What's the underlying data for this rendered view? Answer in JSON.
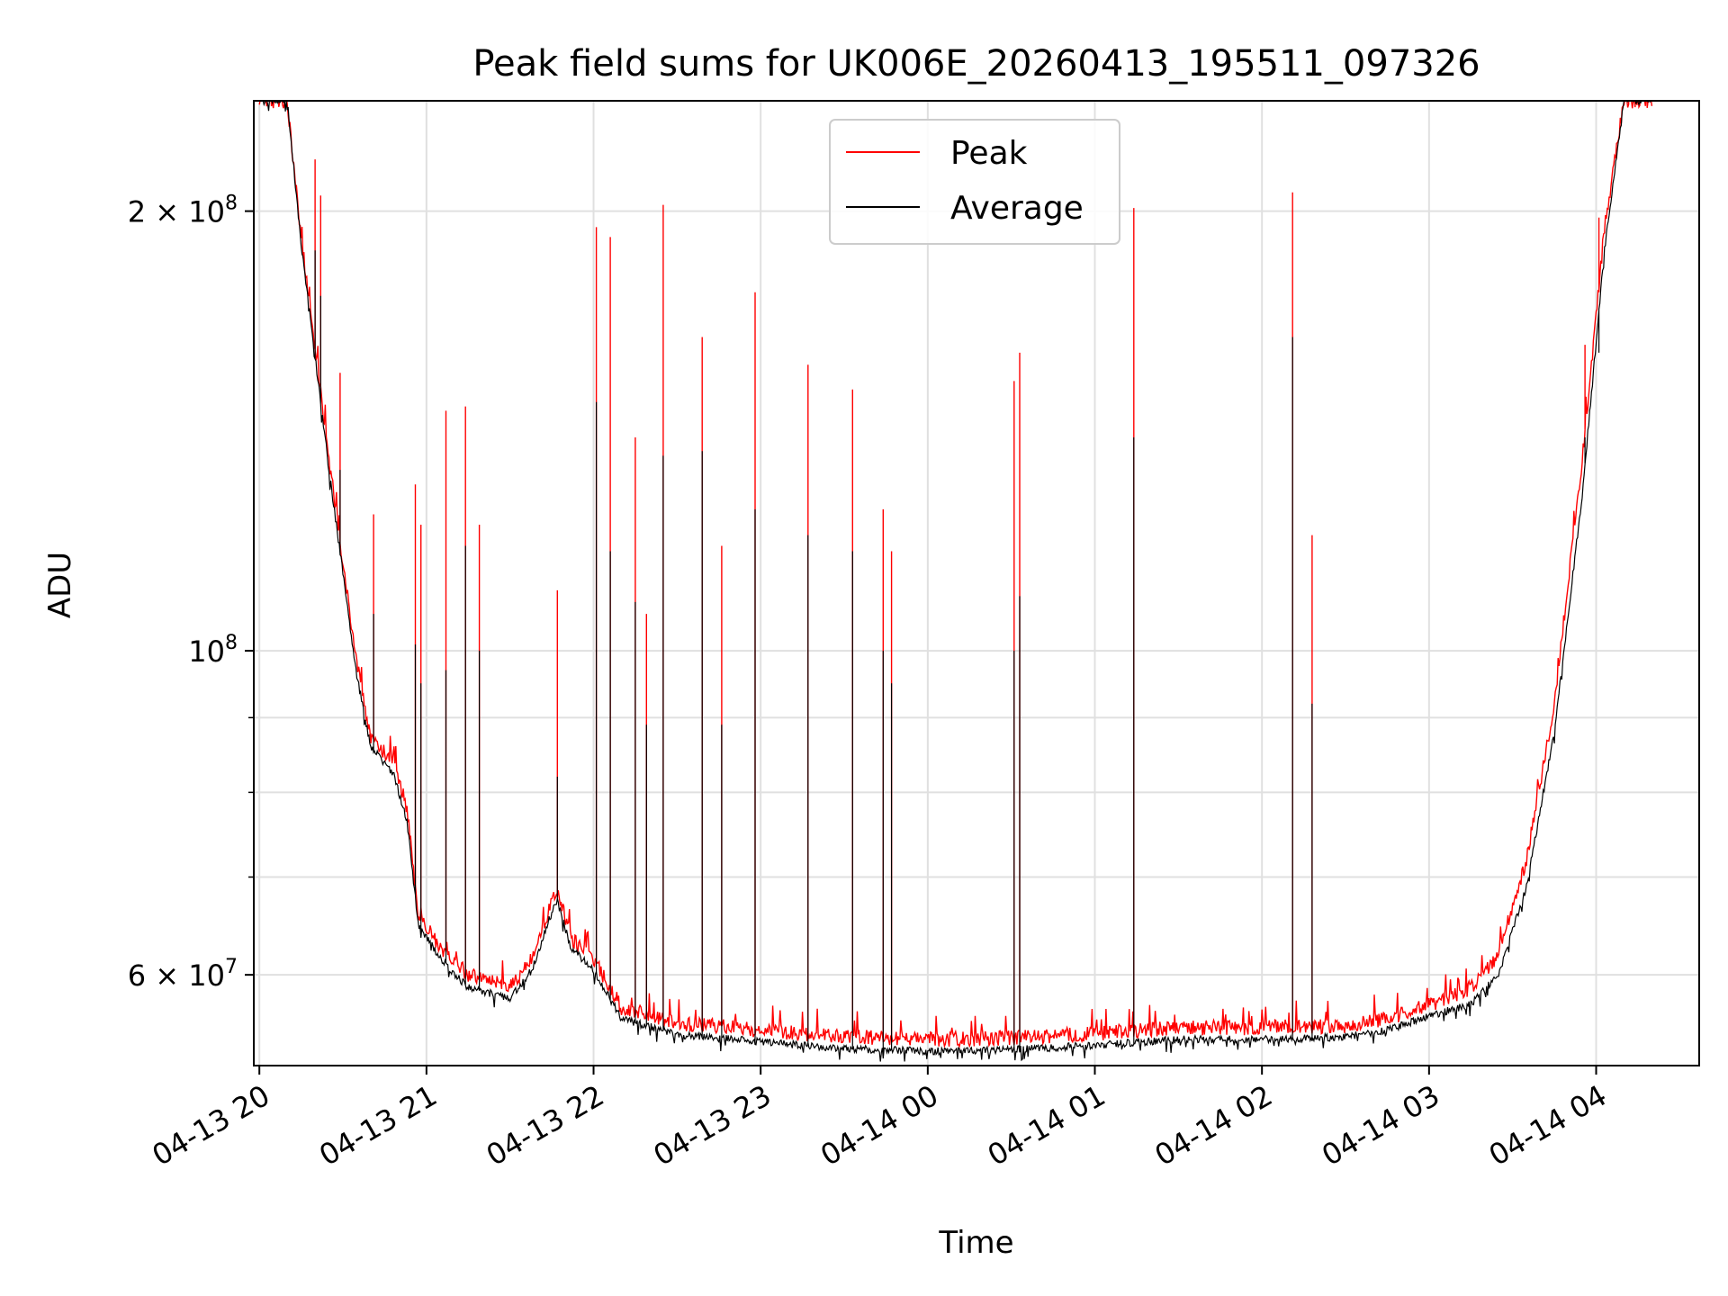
{
  "chart_data": {
    "type": "line",
    "title": "Peak field sums for UK006E_20260413_195511_097326",
    "xlabel": "Time",
    "ylabel": "ADU",
    "y_scale": "log",
    "ylim": [
      52000000,
      238000000
    ],
    "xlim": [
      "2026-04-13 19:58",
      "2026-04-14 04:37"
    ],
    "grid": true,
    "legend_position": "top-center",
    "x_ticks": [
      "04-13 20",
      "04-13 21",
      "04-13 22",
      "04-13 23",
      "04-14 00",
      "04-14 01",
      "04-14 02",
      "04-14 03",
      "04-14 04"
    ],
    "y_ticks": [
      {
        "value": 60000000,
        "mantissa": "6",
        "exponent": "7"
      },
      {
        "value": 100000000,
        "mantissa": "",
        "exponent": "8"
      },
      {
        "value": 200000000,
        "mantissa": "2",
        "exponent": "8"
      }
    ],
    "y_minor_ticks": [
      70000000,
      80000000,
      90000000
    ],
    "colors": {
      "peak": "#ff0000",
      "average": "#000000",
      "grid": "#e0e0e0"
    },
    "series": [
      {
        "name": "Peak",
        "color": "#ff0000",
        "baseline_points": [
          [
            "2026-04-13 20:10",
            238000000
          ],
          [
            "2026-04-13 20:15",
            192000000
          ],
          [
            "2026-04-13 20:25",
            135000000
          ],
          [
            "2026-04-13 20:35",
            98000000
          ],
          [
            "2026-04-13 20:40",
            87000000
          ],
          [
            "2026-04-13 20:48",
            84000000
          ],
          [
            "2026-04-13 20:53",
            78000000
          ],
          [
            "2026-04-13 20:57",
            66000000
          ],
          [
            "2026-04-13 21:05",
            62500000
          ],
          [
            "2026-04-13 21:15",
            60000000
          ],
          [
            "2026-04-13 21:30",
            58800000
          ],
          [
            "2026-04-13 21:38",
            61500000
          ],
          [
            "2026-04-13 21:44",
            66500000
          ],
          [
            "2026-04-13 21:47",
            68500000
          ],
          [
            "2026-04-13 21:52",
            63500000
          ],
          [
            "2026-04-13 22:00",
            61500000
          ],
          [
            "2026-04-13 22:10",
            57000000
          ],
          [
            "2026-04-13 22:30",
            55600000
          ],
          [
            "2026-04-13 23:00",
            55000000
          ],
          [
            "2026-04-13 23:30",
            54400000
          ],
          [
            "2026-04-14 00:00",
            54200000
          ],
          [
            "2026-04-14 00:30",
            54300000
          ],
          [
            "2026-04-14 01:00",
            54700000
          ],
          [
            "2026-04-14 01:30",
            55200000
          ],
          [
            "2026-04-14 02:00",
            55200000
          ],
          [
            "2026-04-14 02:30",
            55400000
          ],
          [
            "2026-04-14 02:45",
            56000000
          ],
          [
            "2026-04-14 03:00",
            57200000
          ],
          [
            "2026-04-14 03:15",
            58800000
          ],
          [
            "2026-04-14 03:25",
            62000000
          ],
          [
            "2026-04-14 03:35",
            72000000
          ],
          [
            "2026-04-14 03:45",
            92000000
          ],
          [
            "2026-04-14 03:55",
            135000000
          ],
          [
            "2026-04-14 04:03",
            195000000
          ],
          [
            "2026-04-14 04:10",
            238000000
          ]
        ]
      },
      {
        "name": "Average",
        "color": "#000000",
        "baseline_points": [
          [
            "2026-04-13 20:10",
            238000000
          ],
          [
            "2026-04-13 20:15",
            190000000
          ],
          [
            "2026-04-13 20:25",
            133000000
          ],
          [
            "2026-04-13 20:35",
            96000000
          ],
          [
            "2026-04-13 20:40",
            86000000
          ],
          [
            "2026-04-13 20:48",
            82500000
          ],
          [
            "2026-04-13 20:53",
            76500000
          ],
          [
            "2026-04-13 20:57",
            65000000
          ],
          [
            "2026-04-13 21:05",
            61500000
          ],
          [
            "2026-04-13 21:15",
            58800000
          ],
          [
            "2026-04-13 21:30",
            57800000
          ],
          [
            "2026-04-13 21:38",
            60500000
          ],
          [
            "2026-04-13 21:44",
            65500000
          ],
          [
            "2026-04-13 21:47",
            67500000
          ],
          [
            "2026-04-13 21:52",
            62500000
          ],
          [
            "2026-04-13 22:00",
            60500000
          ],
          [
            "2026-04-13 22:10",
            56000000
          ],
          [
            "2026-04-13 22:30",
            54600000
          ],
          [
            "2026-04-13 23:00",
            54000000
          ],
          [
            "2026-04-13 23:30",
            53400000
          ],
          [
            "2026-04-14 00:00",
            53200000
          ],
          [
            "2026-04-14 00:30",
            53300000
          ],
          [
            "2026-04-14 01:00",
            53700000
          ],
          [
            "2026-04-14 01:30",
            54200000
          ],
          [
            "2026-04-14 02:00",
            54200000
          ],
          [
            "2026-04-14 02:30",
            54400000
          ],
          [
            "2026-04-14 02:45",
            55000000
          ],
          [
            "2026-04-14 03:00",
            56200000
          ],
          [
            "2026-04-14 03:15",
            57300000
          ],
          [
            "2026-04-14 03:25",
            60000000
          ],
          [
            "2026-04-14 03:35",
            69000000
          ],
          [
            "2026-04-14 03:45",
            88000000
          ],
          [
            "2026-04-14 03:55",
            128000000
          ],
          [
            "2026-04-14 04:03",
            188000000
          ],
          [
            "2026-04-14 04:10",
            238000000
          ]
        ]
      }
    ],
    "spikes": [
      {
        "t": "2026-04-13 20:20",
        "peak": 217000000,
        "average": 188000000
      },
      {
        "t": "2026-04-13 20:22",
        "peak": 205000000,
        "average": 175000000
      },
      {
        "t": "2026-04-13 20:29",
        "peak": 155000000,
        "average": 133000000
      },
      {
        "t": "2026-04-13 20:41",
        "peak": 124000000,
        "average": 106000000
      },
      {
        "t": "2026-04-13 20:56",
        "peak": 130000000,
        "average": 101000000
      },
      {
        "t": "2026-04-13 20:58",
        "peak": 122000000,
        "average": 95000000
      },
      {
        "t": "2026-04-13 21:07",
        "peak": 146000000,
        "average": 97000000
      },
      {
        "t": "2026-04-13 21:14",
        "peak": 147000000,
        "average": 118000000
      },
      {
        "t": "2026-04-13 21:19",
        "peak": 122000000,
        "average": 100000000
      },
      {
        "t": "2026-04-13 21:47",
        "peak": 110000000,
        "average": 82000000
      },
      {
        "t": "2026-04-13 22:01",
        "peak": 195000000,
        "average": 148000000
      },
      {
        "t": "2026-04-13 22:06",
        "peak": 192000000,
        "average": 117000000
      },
      {
        "t": "2026-04-13 22:15",
        "peak": 140000000,
        "average": 108000000
      },
      {
        "t": "2026-04-13 22:19",
        "peak": 106000000,
        "average": 89000000
      },
      {
        "t": "2026-04-13 22:25",
        "peak": 202000000,
        "average": 136000000
      },
      {
        "t": "2026-04-13 22:39",
        "peak": 164000000,
        "average": 137000000
      },
      {
        "t": "2026-04-13 22:46",
        "peak": 118000000,
        "average": 89000000
      },
      {
        "t": "2026-04-13 22:58",
        "peak": 176000000,
        "average": 125000000
      },
      {
        "t": "2026-04-13 23:17",
        "peak": 157000000,
        "average": 120000000
      },
      {
        "t": "2026-04-13 23:33",
        "peak": 151000000,
        "average": 117000000
      },
      {
        "t": "2026-04-13 23:44",
        "peak": 125000000,
        "average": 100000000
      },
      {
        "t": "2026-04-13 23:47",
        "peak": 117000000,
        "average": 95000000
      },
      {
        "t": "2026-04-14 00:31",
        "peak": 153000000,
        "average": 100000000
      },
      {
        "t": "2026-04-14 00:33",
        "peak": 160000000,
        "average": 109000000
      },
      {
        "t": "2026-04-14 01:14",
        "peak": 201000000,
        "average": 140000000
      },
      {
        "t": "2026-04-14 02:11",
        "peak": 206000000,
        "average": 164000000
      },
      {
        "t": "2026-04-14 02:18",
        "peak": 120000000,
        "average": 92000000
      },
      {
        "t": "2026-04-14 03:56",
        "peak": 162000000,
        "average": 140000000
      },
      {
        "t": "2026-04-14 04:01",
        "peak": 198000000,
        "average": 160000000
      }
    ]
  }
}
